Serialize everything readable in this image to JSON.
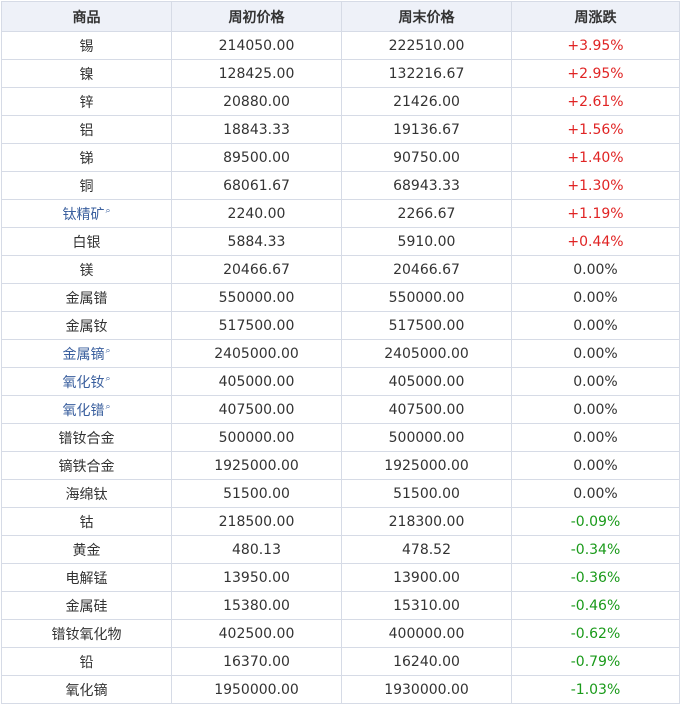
{
  "headers": {
    "name": "商品",
    "open": "周初价格",
    "close": "周末价格",
    "change": "周涨跌"
  },
  "colors": {
    "up": "#e02424",
    "down": "#1a9a1a",
    "flat": "#333333",
    "link": "#3a5f9e",
    "header_bg": "#eef1f8"
  },
  "rows": [
    {
      "name": "锡",
      "open": "214050.00",
      "close": "222510.00",
      "change": "+3.95%",
      "dir": "up",
      "link": false
    },
    {
      "name": "镍",
      "open": "128425.00",
      "close": "132216.67",
      "change": "+2.95%",
      "dir": "up",
      "link": false
    },
    {
      "name": "锌",
      "open": "20880.00",
      "close": "21426.00",
      "change": "+2.61%",
      "dir": "up",
      "link": false
    },
    {
      "name": "铝",
      "open": "18843.33",
      "close": "19136.67",
      "change": "+1.56%",
      "dir": "up",
      "link": false
    },
    {
      "name": "锑",
      "open": "89500.00",
      "close": "90750.00",
      "change": "+1.40%",
      "dir": "up",
      "link": false
    },
    {
      "name": "铜",
      "open": "68061.67",
      "close": "68943.33",
      "change": "+1.30%",
      "dir": "up",
      "link": false
    },
    {
      "name": "钛精矿",
      "open": "2240.00",
      "close": "2266.67",
      "change": "+1.19%",
      "dir": "up",
      "link": true
    },
    {
      "name": "白银",
      "open": "5884.33",
      "close": "5910.00",
      "change": "+0.44%",
      "dir": "up",
      "link": false
    },
    {
      "name": "镁",
      "open": "20466.67",
      "close": "20466.67",
      "change": "0.00%",
      "dir": "flat",
      "link": false
    },
    {
      "name": "金属镨",
      "open": "550000.00",
      "close": "550000.00",
      "change": "0.00%",
      "dir": "flat",
      "link": false
    },
    {
      "name": "金属钕",
      "open": "517500.00",
      "close": "517500.00",
      "change": "0.00%",
      "dir": "flat",
      "link": false
    },
    {
      "name": "金属镝",
      "open": "2405000.00",
      "close": "2405000.00",
      "change": "0.00%",
      "dir": "flat",
      "link": true
    },
    {
      "name": "氧化钕",
      "open": "405000.00",
      "close": "405000.00",
      "change": "0.00%",
      "dir": "flat",
      "link": true
    },
    {
      "name": "氧化镨",
      "open": "407500.00",
      "close": "407500.00",
      "change": "0.00%",
      "dir": "flat",
      "link": true
    },
    {
      "name": "镨钕合金",
      "open": "500000.00",
      "close": "500000.00",
      "change": "0.00%",
      "dir": "flat",
      "link": false
    },
    {
      "name": "镝铁合金",
      "open": "1925000.00",
      "close": "1925000.00",
      "change": "0.00%",
      "dir": "flat",
      "link": false
    },
    {
      "name": "海绵钛",
      "open": "51500.00",
      "close": "51500.00",
      "change": "0.00%",
      "dir": "flat",
      "link": false
    },
    {
      "name": "钴",
      "open": "218500.00",
      "close": "218300.00",
      "change": "-0.09%",
      "dir": "down",
      "link": false
    },
    {
      "name": "黄金",
      "open": "480.13",
      "close": "478.52",
      "change": "-0.34%",
      "dir": "down",
      "link": false
    },
    {
      "name": "电解锰",
      "open": "13950.00",
      "close": "13900.00",
      "change": "-0.36%",
      "dir": "down",
      "link": false
    },
    {
      "name": "金属硅",
      "open": "15380.00",
      "close": "15310.00",
      "change": "-0.46%",
      "dir": "down",
      "link": false
    },
    {
      "name": "镨钕氧化物",
      "open": "402500.00",
      "close": "400000.00",
      "change": "-0.62%",
      "dir": "down",
      "link": false
    },
    {
      "name": "铅",
      "open": "16370.00",
      "close": "16240.00",
      "change": "-0.79%",
      "dir": "down",
      "link": false
    },
    {
      "name": "氧化镝",
      "open": "1950000.00",
      "close": "1930000.00",
      "change": "-1.03%",
      "dir": "down",
      "link": false
    }
  ]
}
